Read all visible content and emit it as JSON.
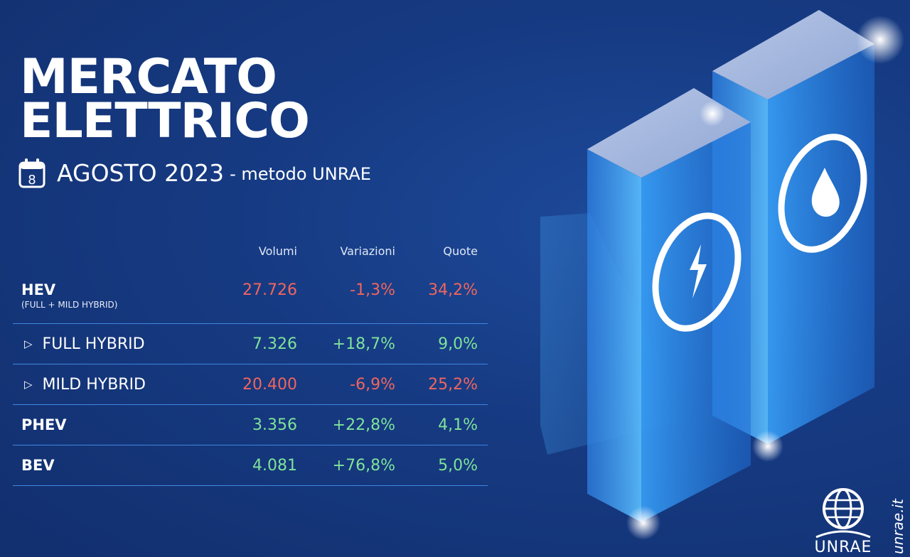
{
  "title": {
    "line1": "MERCATO",
    "line2": "ELETTRICO"
  },
  "subtitle": {
    "calendar_day": "8",
    "main": "AGOSTO 2023",
    "method": "- metodo UNRAE"
  },
  "table": {
    "headers": {
      "volumes": "Volumi",
      "variations": "Variazioni",
      "shares": "Quote"
    },
    "rows": [
      {
        "label": "HEV",
        "sublabel": "(FULL + MILD HYBRID)",
        "volume": "27.726",
        "variation": "-1,3%",
        "share": "34,2%",
        "trend": "down"
      },
      {
        "label": "FULL HYBRID",
        "volume": "7.326",
        "variation": "+18,7%",
        "share": "9,0%",
        "trend": "up"
      },
      {
        "label": "MILD HYBRID",
        "volume": "20.400",
        "variation": "-6,9%",
        "share": "25,2%",
        "trend": "down"
      },
      {
        "label": "PHEV",
        "volume": "3.356",
        "variation": "+22,8%",
        "share": "4,1%",
        "trend": "up"
      },
      {
        "label": "BEV",
        "volume": "4.081",
        "variation": "+76,8%",
        "share": "5,0%",
        "trend": "up"
      }
    ]
  },
  "colors": {
    "positive": "#7fe39a",
    "negative": "#f0655e",
    "divider": "#3f86e0",
    "background": "#163a82"
  },
  "icons": {
    "calendar": "calendar-icon",
    "bullet": "triangle-right-icon",
    "electric": "lightning-bolt-icon",
    "fuel": "fuel-drop-icon",
    "brand": "unrae-globe-logo"
  },
  "brand": {
    "name": "UNRAE",
    "site": "unrae.it"
  }
}
